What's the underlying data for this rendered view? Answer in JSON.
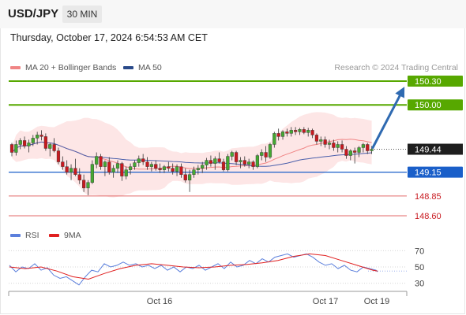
{
  "header": {
    "pair": "USD/JPY",
    "timeframe": "30 MIN"
  },
  "timestamp": "Thursday, October 17, 2024 6:54:53 AM CET",
  "legend": {
    "ma_label": "MA 20 + Bollinger Bands",
    "ma50_label": "MA 50",
    "rsi_label": "RSI",
    "rsi_ma_label": "9MA"
  },
  "credit": "Research © 2024 Trading Central",
  "colors": {
    "up": "#44a832",
    "down": "#c8191f",
    "ma20": "#f08585",
    "ma50": "#4a5fab",
    "bb": "#fde2e2",
    "pivot": "#1a5fc9",
    "resistance": "#57a800",
    "support": "#e36a6a",
    "arrow": "#2f6ab1",
    "rsi": "#5b7fdc",
    "rsi_ma": "#e02020"
  },
  "chart_data": {
    "type": "candlestick",
    "ylim": [
      148.52,
      150.35
    ],
    "levels": [
      {
        "value": 150.3,
        "label": "150.30",
        "kind": "resistance"
      },
      {
        "value": 150.0,
        "label": "150.00",
        "kind": "resistance"
      },
      {
        "value": 149.15,
        "label": "149.15",
        "kind": "pivot"
      },
      {
        "value": 148.85,
        "label": "148.85",
        "kind": "support"
      },
      {
        "value": 148.6,
        "label": "148.60",
        "kind": "support"
      }
    ],
    "last_price": {
      "value": 149.44,
      "label": "149.44"
    },
    "forecast_arrow": {
      "from": 149.44,
      "to": 150.25
    },
    "ohlc": [
      [
        149.5,
        149.52,
        149.35,
        149.4
      ],
      [
        149.4,
        149.55,
        149.36,
        149.5
      ],
      [
        149.5,
        149.58,
        149.44,
        149.55
      ],
      [
        149.55,
        149.6,
        149.45,
        149.48
      ],
      [
        149.48,
        149.56,
        149.4,
        149.52
      ],
      [
        149.52,
        149.62,
        149.48,
        149.58
      ],
      [
        149.58,
        149.66,
        149.5,
        149.62
      ],
      [
        149.62,
        149.68,
        149.55,
        149.6
      ],
      [
        149.6,
        149.64,
        149.42,
        149.45
      ],
      [
        149.45,
        149.52,
        149.35,
        149.5
      ],
      [
        149.5,
        149.58,
        149.4,
        149.42
      ],
      [
        149.42,
        149.46,
        149.25,
        149.28
      ],
      [
        149.28,
        149.35,
        149.18,
        149.22
      ],
      [
        149.22,
        149.3,
        149.12,
        149.15
      ],
      [
        149.15,
        149.25,
        149.05,
        149.2
      ],
      [
        149.2,
        149.32,
        149.1,
        149.12
      ],
      [
        149.12,
        149.2,
        149.0,
        149.05
      ],
      [
        149.05,
        149.12,
        148.9,
        148.95
      ],
      [
        148.95,
        149.05,
        148.86,
        149.02
      ],
      [
        149.02,
        149.3,
        149.0,
        149.25
      ],
      [
        149.25,
        149.4,
        149.2,
        149.35
      ],
      [
        149.35,
        149.38,
        149.18,
        149.22
      ],
      [
        149.22,
        149.3,
        149.1,
        149.28
      ],
      [
        149.28,
        149.34,
        149.12,
        149.15
      ],
      [
        149.15,
        149.24,
        149.08,
        149.2
      ],
      [
        149.2,
        149.3,
        149.14,
        149.26
      ],
      [
        149.26,
        149.28,
        149.04,
        149.1
      ],
      [
        149.1,
        149.22,
        149.06,
        149.18
      ],
      [
        149.18,
        149.26,
        149.12,
        149.22
      ],
      [
        149.22,
        149.3,
        149.18,
        149.27
      ],
      [
        149.27,
        149.36,
        149.22,
        149.32
      ],
      [
        149.32,
        149.38,
        149.24,
        149.28
      ],
      [
        149.28,
        149.34,
        149.18,
        149.22
      ],
      [
        149.22,
        149.28,
        149.16,
        149.25
      ],
      [
        149.25,
        149.3,
        149.17,
        149.2
      ],
      [
        149.2,
        149.26,
        149.14,
        149.18
      ],
      [
        149.18,
        149.24,
        149.14,
        149.22
      ],
      [
        149.22,
        149.28,
        149.16,
        149.2
      ],
      [
        149.2,
        149.26,
        149.12,
        149.16
      ],
      [
        149.16,
        149.25,
        149.1,
        149.22
      ],
      [
        149.22,
        149.26,
        149.08,
        149.12
      ],
      [
        149.12,
        149.2,
        149.02,
        149.05
      ],
      [
        149.05,
        149.18,
        148.9,
        149.12
      ],
      [
        149.12,
        149.22,
        149.08,
        149.18
      ],
      [
        149.18,
        149.24,
        149.12,
        149.2
      ],
      [
        149.2,
        149.28,
        149.14,
        149.24
      ],
      [
        149.24,
        149.33,
        149.18,
        149.3
      ],
      [
        149.3,
        149.36,
        149.22,
        149.26
      ],
      [
        149.26,
        149.35,
        149.18,
        149.32
      ],
      [
        149.32,
        149.4,
        149.26,
        149.28
      ],
      [
        149.28,
        149.32,
        149.16,
        149.18
      ],
      [
        149.18,
        149.38,
        149.16,
        149.35
      ],
      [
        149.35,
        149.42,
        149.3,
        149.4
      ],
      [
        149.4,
        149.42,
        149.24,
        149.28
      ],
      [
        149.28,
        149.34,
        149.2,
        149.3
      ],
      [
        149.3,
        149.35,
        149.22,
        149.25
      ],
      [
        149.25,
        149.32,
        149.2,
        149.28
      ],
      [
        149.28,
        149.3,
        149.18,
        149.22
      ],
      [
        149.22,
        149.38,
        149.2,
        149.36
      ],
      [
        149.36,
        149.44,
        149.3,
        149.4
      ],
      [
        149.4,
        149.48,
        149.28,
        149.34
      ],
      [
        149.34,
        149.52,
        149.32,
        149.5
      ],
      [
        149.5,
        149.66,
        149.46,
        149.64
      ],
      [
        149.64,
        149.7,
        149.55,
        149.6
      ],
      [
        149.6,
        149.68,
        149.56,
        149.66
      ],
      [
        149.66,
        149.7,
        149.6,
        149.64
      ],
      [
        149.64,
        149.72,
        149.6,
        149.68
      ],
      [
        149.68,
        149.72,
        149.62,
        149.66
      ],
      [
        149.66,
        149.71,
        149.62,
        149.69
      ],
      [
        149.69,
        149.72,
        149.63,
        149.65
      ],
      [
        149.65,
        149.71,
        149.6,
        149.68
      ],
      [
        149.68,
        149.7,
        149.58,
        149.62
      ],
      [
        149.62,
        149.64,
        149.5,
        149.54
      ],
      [
        149.54,
        149.6,
        149.48,
        149.56
      ],
      [
        149.56,
        149.6,
        149.46,
        149.5
      ],
      [
        149.5,
        149.56,
        149.44,
        149.52
      ],
      [
        149.52,
        149.56,
        149.42,
        149.46
      ],
      [
        149.46,
        149.54,
        149.4,
        149.5
      ],
      [
        149.5,
        149.55,
        149.4,
        149.44
      ],
      [
        149.44,
        149.48,
        149.32,
        149.36
      ],
      [
        149.36,
        149.44,
        149.3,
        149.42
      ],
      [
        149.42,
        149.46,
        149.26,
        149.4
      ],
      [
        149.4,
        149.48,
        149.34,
        149.46
      ],
      [
        149.46,
        149.52,
        149.4,
        149.5
      ],
      [
        149.5,
        149.52,
        149.38,
        149.42
      ],
      [
        149.42,
        149.48,
        149.38,
        149.44
      ]
    ],
    "rsi": [
      [
        0,
        52
      ],
      [
        8,
        44
      ],
      [
        16,
        50
      ],
      [
        24,
        48
      ],
      [
        32,
        54
      ],
      [
        40,
        46
      ],
      [
        48,
        49
      ],
      [
        56,
        40
      ],
      [
        64,
        36
      ],
      [
        72,
        38
      ],
      [
        80,
        33
      ],
      [
        88,
        28
      ],
      [
        96,
        38
      ],
      [
        104,
        46
      ],
      [
        112,
        44
      ],
      [
        120,
        54
      ],
      [
        128,
        50
      ],
      [
        136,
        52
      ],
      [
        144,
        56
      ],
      [
        152,
        52
      ],
      [
        160,
        54
      ],
      [
        168,
        50
      ],
      [
        176,
        52
      ],
      [
        184,
        48
      ],
      [
        192,
        52
      ],
      [
        200,
        46
      ],
      [
        208,
        50
      ],
      [
        216,
        44
      ],
      [
        224,
        50
      ],
      [
        232,
        48
      ],
      [
        240,
        52
      ],
      [
        248,
        46
      ],
      [
        256,
        50
      ],
      [
        264,
        54
      ],
      [
        272,
        48
      ],
      [
        280,
        56
      ],
      [
        288,
        50
      ],
      [
        296,
        52
      ],
      [
        304,
        58
      ],
      [
        312,
        54
      ],
      [
        320,
        60
      ],
      [
        328,
        56
      ],
      [
        336,
        62
      ],
      [
        344,
        64
      ],
      [
        352,
        66
      ],
      [
        360,
        62
      ],
      [
        368,
        64
      ],
      [
        376,
        66
      ],
      [
        384,
        62
      ],
      [
        392,
        56
      ],
      [
        400,
        52
      ],
      [
        408,
        54
      ],
      [
        416,
        48
      ],
      [
        424,
        52
      ],
      [
        432,
        46
      ],
      [
        440,
        44
      ],
      [
        448,
        50
      ],
      [
        456,
        48
      ],
      [
        464,
        46
      ],
      [
        466,
        44
      ]
    ],
    "rsi_ma": [
      [
        0,
        50
      ],
      [
        20,
        48
      ],
      [
        40,
        50
      ],
      [
        60,
        45
      ],
      [
        80,
        38
      ],
      [
        100,
        35
      ],
      [
        120,
        42
      ],
      [
        140,
        48
      ],
      [
        160,
        52
      ],
      [
        180,
        54
      ],
      [
        200,
        52
      ],
      [
        220,
        50
      ],
      [
        240,
        49
      ],
      [
        260,
        50
      ],
      [
        280,
        52
      ],
      [
        300,
        53
      ],
      [
        320,
        55
      ],
      [
        340,
        58
      ],
      [
        360,
        63
      ],
      [
        380,
        66
      ],
      [
        400,
        64
      ],
      [
        420,
        58
      ],
      [
        440,
        52
      ],
      [
        460,
        46
      ],
      [
        466,
        45
      ]
    ],
    "rsi_ticks": [
      70,
      50,
      30
    ],
    "x_ticks": [
      "Oct 16",
      "Oct 17",
      "Oct 19"
    ]
  }
}
